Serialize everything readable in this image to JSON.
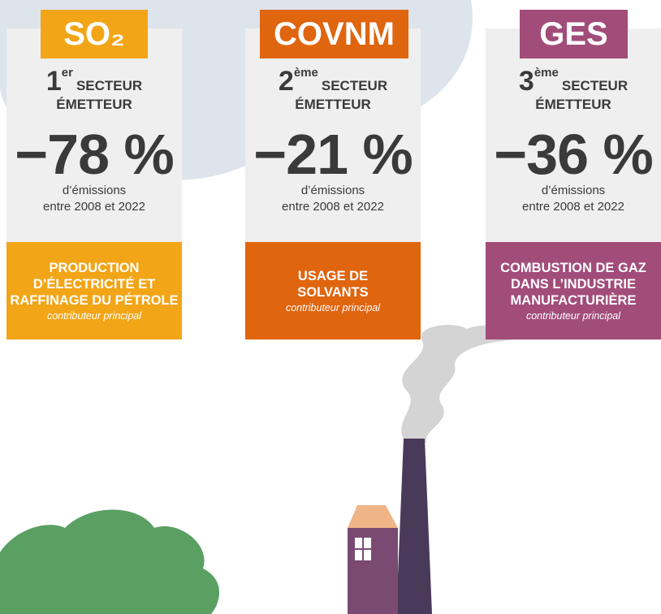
{
  "cards": [
    {
      "pollutant": "SO₂",
      "rank": "1",
      "rank_suffix": "er",
      "sector_word": "SECTEUR",
      "emitter_word": "ÉMETTEUR",
      "change": "−78 %",
      "note": [
        "d’émissions",
        "entre 2008 et 2022"
      ],
      "contributor": [
        "PRODUCTION",
        "D’ÉLECTRICITÉ ET",
        "RAFFINAGE DU PÉTROLE"
      ],
      "contributor_caption": "contributeur principal",
      "color": "#f2a516"
    },
    {
      "pollutant": "COVNM",
      "rank": "2",
      "rank_suffix": "ème",
      "sector_word": "SECTEUR",
      "emitter_word": "ÉMETTEUR",
      "change": "−21 %",
      "note": [
        "d’émissions",
        "entre 2008 et 2022"
      ],
      "contributor": [
        "USAGE DE",
        "SOLVANTS"
      ],
      "contributor_caption": "contributeur principal",
      "color": "#e0650f"
    },
    {
      "pollutant": "GES",
      "rank": "3",
      "rank_suffix": "ème",
      "sector_word": "SECTEUR",
      "emitter_word": "ÉMETTEUR",
      "change": "−36 %",
      "note": [
        "d’émissions",
        "entre 2008 et 2022"
      ],
      "contributor": [
        "COMBUSTION DE GAZ",
        "DANS L’INDUSTRIE",
        "MANUFACTURIÈRE"
      ],
      "contributor_caption": "contributeur principal",
      "color": "#a24c7a"
    }
  ]
}
